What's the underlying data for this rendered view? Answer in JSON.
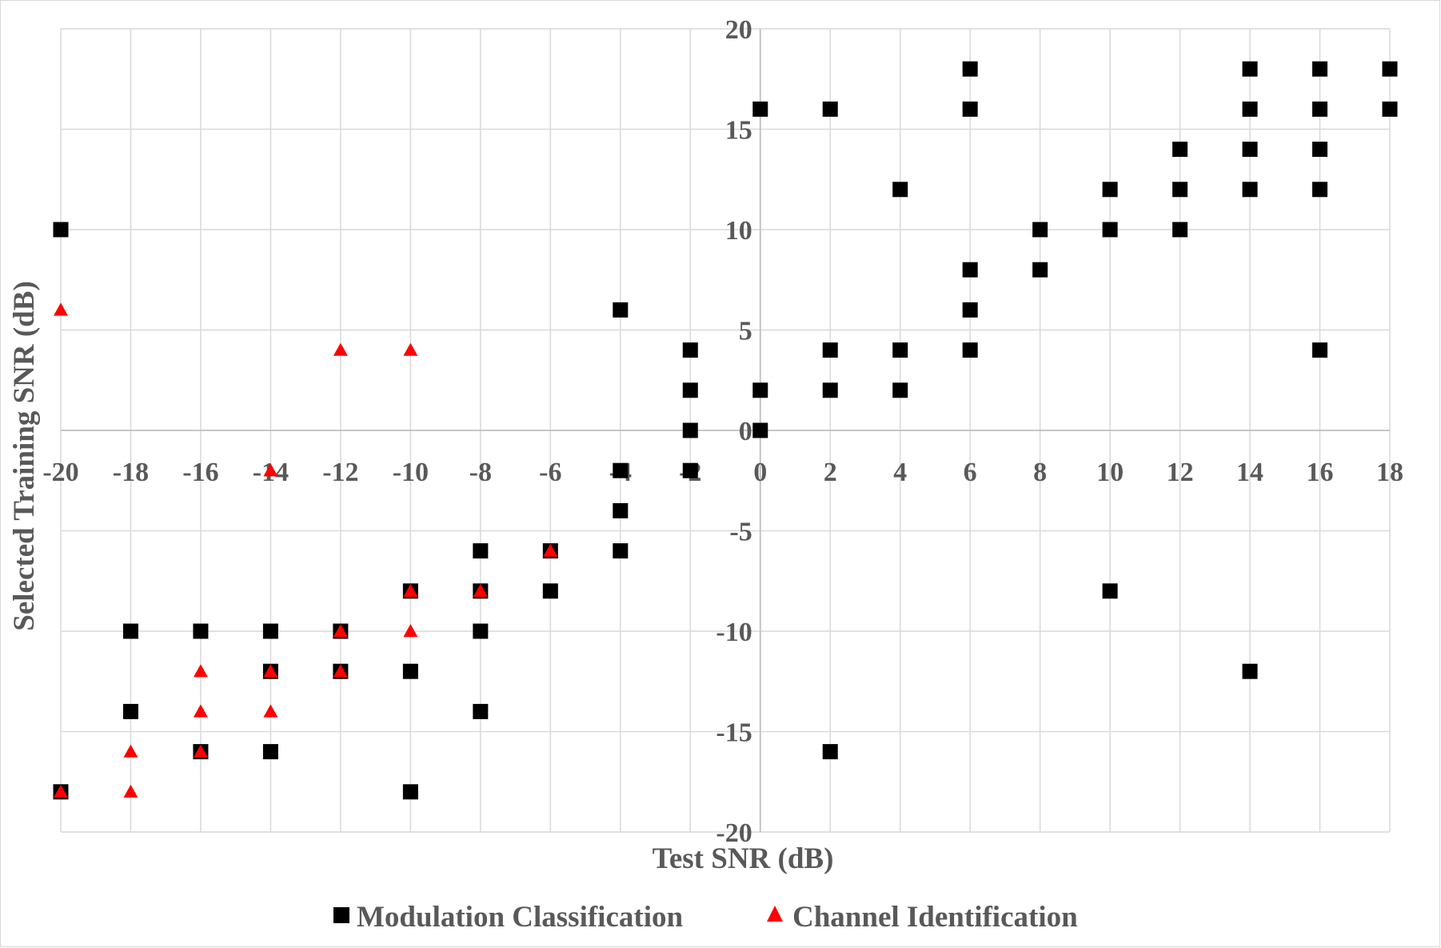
{
  "chart_data": {
    "type": "scatter",
    "title": "",
    "xlabel": "Test SNR (dB)",
    "ylabel": "Selected Training SNR (dB)",
    "xlim": [
      -20,
      18
    ],
    "ylim": [
      -20,
      20
    ],
    "x_ticks": [
      -20,
      -18,
      -16,
      -14,
      -12,
      -10,
      -8,
      -6,
      -4,
      -2,
      0,
      2,
      4,
      6,
      8,
      10,
      12,
      14,
      16,
      18
    ],
    "y_ticks": [
      -20,
      -15,
      -10,
      -5,
      0,
      5,
      10,
      15,
      20
    ],
    "grid": true,
    "legend_position": "bottom",
    "series": [
      {
        "name": "Modulation Classification",
        "marker": "square",
        "color": "#000000",
        "points": [
          [
            -20,
            10
          ],
          [
            -20,
            -18
          ],
          [
            -18,
            -10
          ],
          [
            -18,
            -14
          ],
          [
            -16,
            -10
          ],
          [
            -16,
            -16
          ],
          [
            -14,
            -10
          ],
          [
            -14,
            -12
          ],
          [
            -14,
            -16
          ],
          [
            -12,
            -10
          ],
          [
            -12,
            -12
          ],
          [
            -10,
            -8
          ],
          [
            -10,
            -12
          ],
          [
            -10,
            -18
          ],
          [
            -8,
            -6
          ],
          [
            -8,
            -8
          ],
          [
            -8,
            -10
          ],
          [
            -8,
            -14
          ],
          [
            -6,
            -6
          ],
          [
            -6,
            -8
          ],
          [
            -4,
            6
          ],
          [
            -4,
            -2
          ],
          [
            -4,
            -4
          ],
          [
            -4,
            -6
          ],
          [
            -2,
            4
          ],
          [
            -2,
            2
          ],
          [
            -2,
            0
          ],
          [
            -2,
            -2
          ],
          [
            0,
            16
          ],
          [
            0,
            2
          ],
          [
            0,
            0
          ],
          [
            2,
            16
          ],
          [
            2,
            4
          ],
          [
            2,
            2
          ],
          [
            2,
            -16
          ],
          [
            4,
            12
          ],
          [
            4,
            4
          ],
          [
            4,
            2
          ],
          [
            6,
            18
          ],
          [
            6,
            16
          ],
          [
            6,
            8
          ],
          [
            6,
            6
          ],
          [
            6,
            4
          ],
          [
            8,
            10
          ],
          [
            8,
            8
          ],
          [
            10,
            12
          ],
          [
            10,
            10
          ],
          [
            10,
            -8
          ],
          [
            12,
            14
          ],
          [
            12,
            12
          ],
          [
            12,
            10
          ],
          [
            14,
            18
          ],
          [
            14,
            16
          ],
          [
            14,
            14
          ],
          [
            14,
            12
          ],
          [
            14,
            -12
          ],
          [
            16,
            18
          ],
          [
            16,
            16
          ],
          [
            16,
            14
          ],
          [
            16,
            12
          ],
          [
            16,
            4
          ],
          [
            18,
            18
          ],
          [
            18,
            16
          ]
        ]
      },
      {
        "name": "Channel Identification",
        "marker": "triangle",
        "color": "#ff0000",
        "points": [
          [
            -20,
            6
          ],
          [
            -20,
            -18
          ],
          [
            -18,
            -16
          ],
          [
            -18,
            -18
          ],
          [
            -16,
            -12
          ],
          [
            -16,
            -14
          ],
          [
            -16,
            -16
          ],
          [
            -14,
            -2
          ],
          [
            -14,
            -12
          ],
          [
            -14,
            -14
          ],
          [
            -12,
            4
          ],
          [
            -12,
            -10
          ],
          [
            -12,
            -12
          ],
          [
            -10,
            4
          ],
          [
            -10,
            -8
          ],
          [
            -10,
            -10
          ],
          [
            -8,
            -8
          ],
          [
            -6,
            -6
          ]
        ]
      }
    ]
  }
}
